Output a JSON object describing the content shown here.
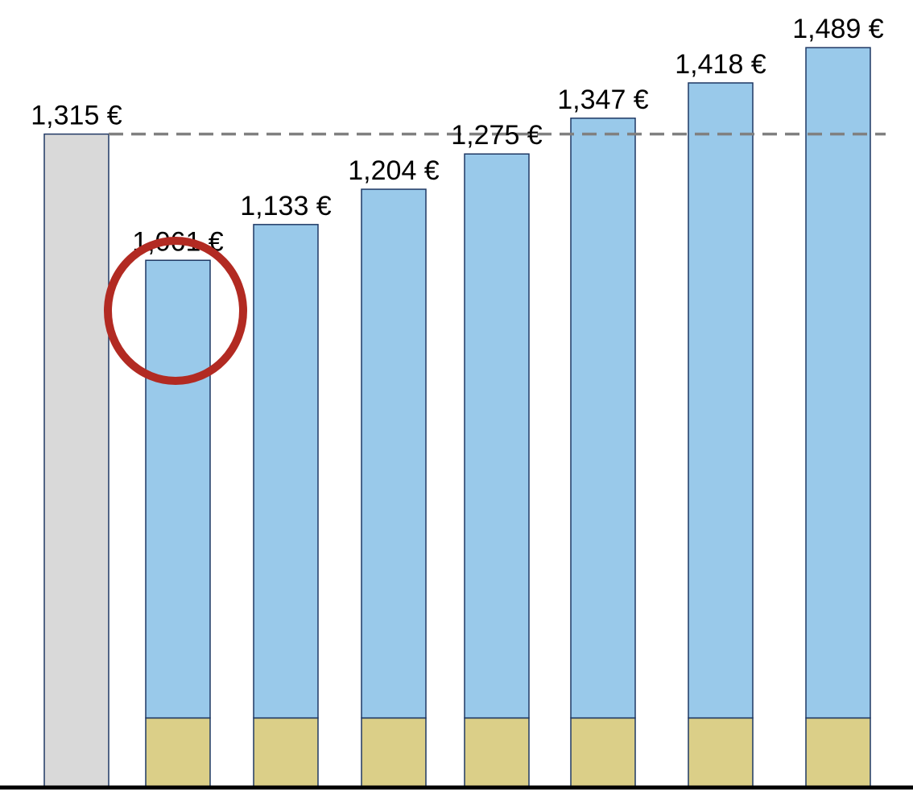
{
  "chart_data": {
    "type": "bar",
    "stacked": true,
    "categories": [
      "",
      "",
      "",
      "",
      "",
      "",
      "",
      ""
    ],
    "labels": [
      "1,315 €",
      "1,061 €",
      "1,133 €",
      "1,204 €",
      "1,275 €",
      "1,347 €",
      "1,418 €",
      "1,489 €"
    ],
    "totals": [
      1315,
      1061,
      1133,
      1204,
      1275,
      1347,
      1418,
      1489
    ],
    "series": [
      {
        "values": [
          1315,
          0,
          0,
          0,
          0,
          0,
          0,
          0
        ],
        "color": "#d9d9d9"
      },
      {
        "values": [
          0,
          140,
          140,
          140,
          140,
          140,
          140,
          140
        ],
        "color": "#dbcf88"
      },
      {
        "values": [
          0,
          921,
          993,
          1064,
          1135,
          1207,
          1278,
          1349
        ],
        "color": "#99c9ea"
      }
    ],
    "reference_line": {
      "value": 1315,
      "style": "dashed",
      "color": "#808080"
    },
    "highlight": {
      "index": 1,
      "shape": "circle",
      "color": "#b22a22"
    },
    "bar_stroke": "#1f3864",
    "ylim": [
      0,
      1550
    ],
    "axis_color": "#000000",
    "grid": false,
    "legend": "none"
  }
}
